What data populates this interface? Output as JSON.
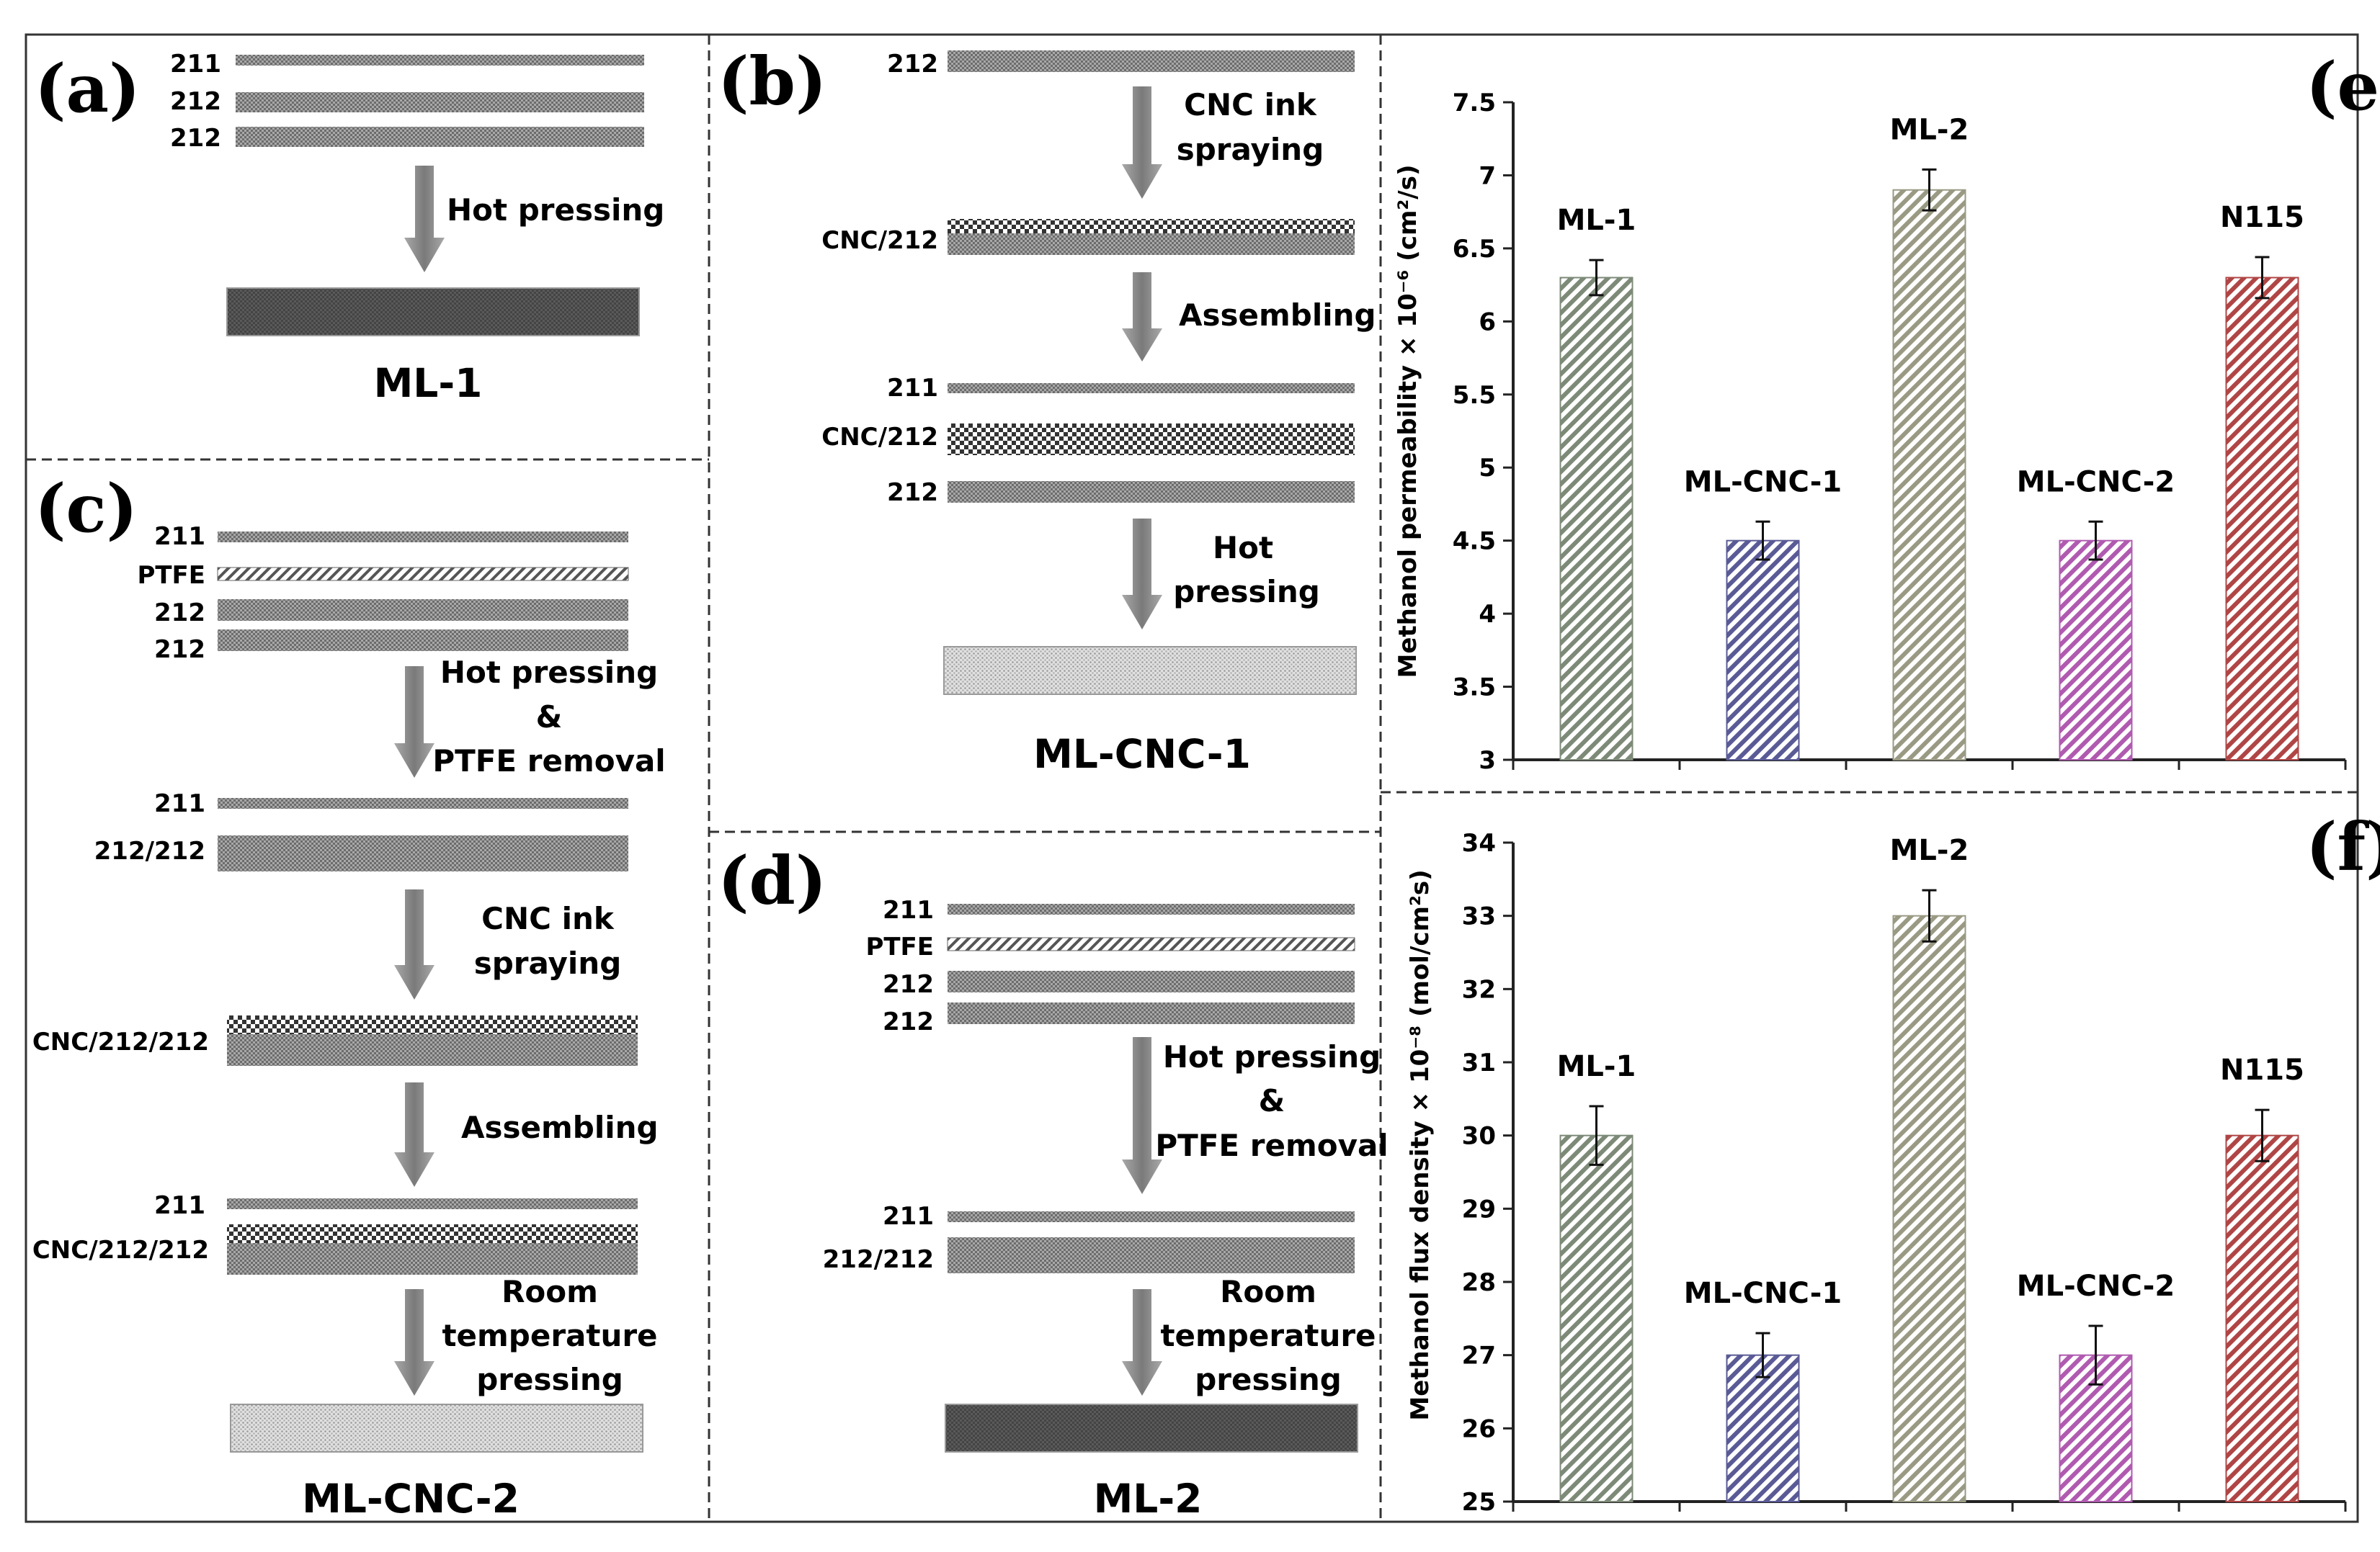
{
  "colors": {
    "panel_border": "#333333",
    "layer_dark": "#777777",
    "arrow": "#8a8a8a",
    "bar_ml1": "#7d8a78",
    "bar_mlcnc1": "#5a5a96",
    "bar_ml2": "#9a9a84",
    "bar_mlcnc2": "#b05ab0",
    "bar_n115": "#b04545"
  },
  "panels": {
    "a": {
      "letter": "(a)",
      "layers": [
        "211",
        "212",
        "212"
      ],
      "step": "Hot pressing",
      "result": "ML-1"
    },
    "b": {
      "letter": "(b)",
      "layer_start": "212",
      "step1": [
        "CNC ink",
        "spraying"
      ],
      "layer_cnc": "CNC/212",
      "step2": "Assembling",
      "assembly": [
        "211",
        "CNC/212",
        "212"
      ],
      "step3": [
        "Hot",
        "pressing"
      ],
      "result": "ML-CNC-1"
    },
    "c": {
      "letter": "(c)",
      "layers": [
        "211",
        "PTFE",
        "212",
        "212"
      ],
      "step1": [
        "Hot pressing",
        "&",
        "PTFE removal"
      ],
      "mid": [
        "211",
        "212/212"
      ],
      "step2": [
        "CNC ink",
        "spraying"
      ],
      "layer_cnc": "CNC/212/212",
      "step3": "Assembling",
      "assembly": [
        "211",
        "CNC/212/212"
      ],
      "step4": [
        "Room",
        "temperature",
        "pressing"
      ],
      "result": "ML-CNC-2"
    },
    "d": {
      "letter": "(d)",
      "layers": [
        "211",
        "PTFE",
        "212",
        "212"
      ],
      "step1": [
        "Hot pressing",
        "&",
        "PTFE removal"
      ],
      "mid": [
        "211",
        "212/212"
      ],
      "step2": [
        "Room",
        "temperature",
        "pressing"
      ],
      "result": "ML-2"
    }
  },
  "chart_data": [
    {
      "panel": "(e)",
      "type": "bar",
      "categories": [
        "ML-1",
        "ML-CNC-1",
        "ML-2",
        "ML-CNC-2",
        "N115"
      ],
      "values": [
        6.3,
        4.5,
        6.9,
        4.5,
        6.3
      ],
      "errors": [
        0.12,
        0.13,
        0.14,
        0.13,
        0.14
      ],
      "ylabel": "Methanol permeability × 10⁻⁶ (cm²/s)",
      "ylim": [
        3,
        7.5
      ],
      "yticks": [
        "3",
        "3.5",
        "4",
        "4.5",
        "5",
        "5.5",
        "6",
        "6.5",
        "7",
        "7.5"
      ],
      "grid": false
    },
    {
      "panel": "(f)",
      "type": "bar",
      "categories": [
        "ML-1",
        "ML-CNC-1",
        "ML-2",
        "ML-CNC-2",
        "N115"
      ],
      "values": [
        30,
        27,
        33,
        27,
        30
      ],
      "errors": [
        0.4,
        0.3,
        0.35,
        0.4,
        0.35
      ],
      "ylabel": "Methanol flux density × 10⁻⁸ (mol/cm²s)",
      "ylim": [
        25,
        34
      ],
      "yticks": [
        "25",
        "26",
        "27",
        "28",
        "29",
        "30",
        "31",
        "32",
        "33",
        "34"
      ],
      "grid": false
    }
  ]
}
